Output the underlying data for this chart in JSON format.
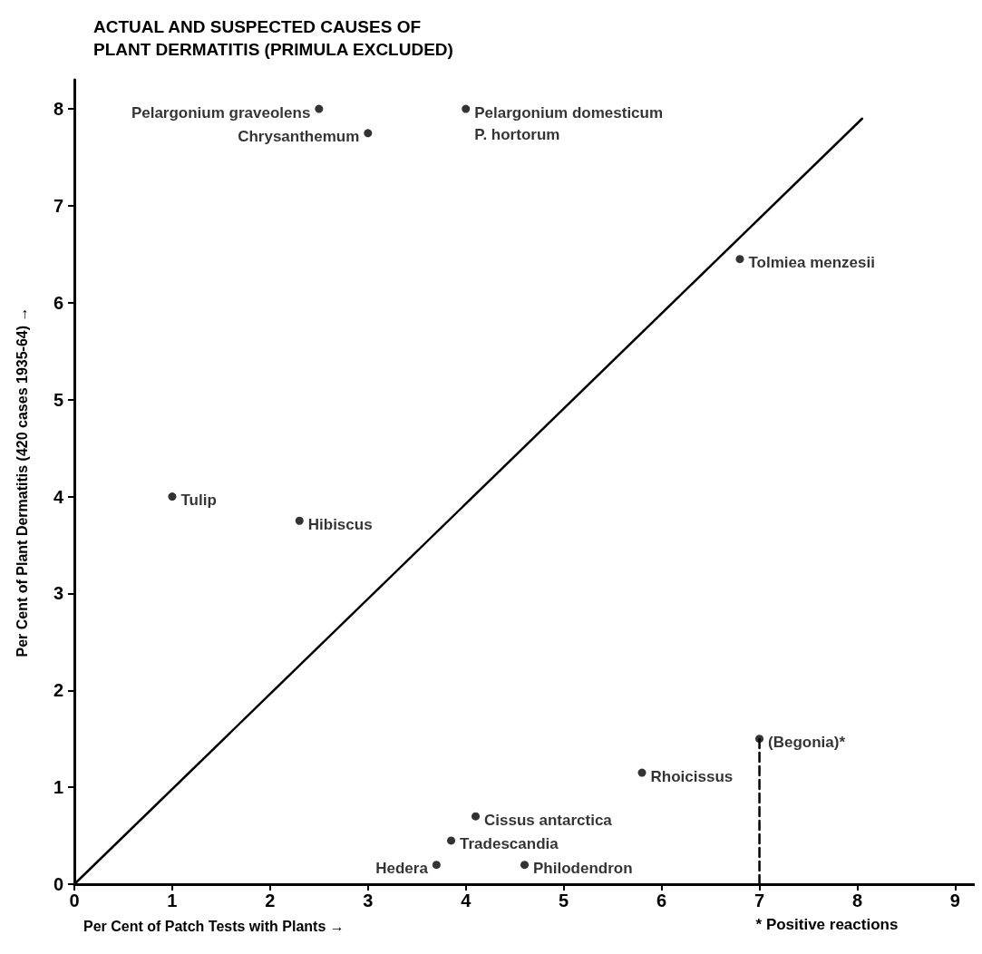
{
  "chart_data": {
    "type": "scatter",
    "title": "ACTUAL AND SUSPECTED CAUSES OF\nPLANT DERMATITIS (PRIMULA EXCLUDED)",
    "xlabel": "Per Cent of Patch Tests with Plants →",
    "ylabel": "Per Cent of Plant Dermatitis (420 cases 1935-64) →",
    "xlim": [
      0,
      9.2
    ],
    "ylim": [
      0,
      8.3
    ],
    "xticks": [
      0,
      1,
      2,
      3,
      4,
      5,
      6,
      7,
      8,
      9
    ],
    "yticks": [
      0,
      1,
      2,
      3,
      4,
      5,
      6,
      7,
      8
    ],
    "grid": false,
    "legend": false,
    "marker": "circle",
    "annotations": [
      {
        "text": "* Positive reactions",
        "x": 7,
        "y": 0
      }
    ],
    "series": [
      {
        "name": "Pelargonium graveolens",
        "color": "#000000",
        "x": [
          2.5
        ],
        "values": [
          8.0
        ]
      },
      {
        "name": "Chrysanthemum",
        "color": "#000000",
        "x": [
          3.0
        ],
        "values": [
          7.75
        ]
      },
      {
        "name": "Pelargonium domesticum\nP. hortorum",
        "color": "#000000",
        "x": [
          4.0
        ],
        "values": [
          8.0
        ]
      },
      {
        "name": "Tolmiea menzesii",
        "color": "#000000",
        "x": [
          6.8
        ],
        "values": [
          6.45
        ]
      },
      {
        "name": "Tulip",
        "color": "#000000",
        "x": [
          1.0
        ],
        "values": [
          4.0
        ]
      },
      {
        "name": "Hibiscus",
        "color": "#000000",
        "x": [
          2.3
        ],
        "values": [
          3.75
        ]
      },
      {
        "name": "(Begonia)*",
        "color": "#000000",
        "x": [
          7.0
        ],
        "values": [
          1.5
        ]
      },
      {
        "name": "Rhoicissus",
        "color": "#000000",
        "x": [
          5.8
        ],
        "values": [
          1.15
        ]
      },
      {
        "name": "Cissus antarctica",
        "color": "#000000",
        "x": [
          4.1
        ],
        "values": [
          0.7
        ]
      },
      {
        "name": "Tradescandia",
        "color": "#000000",
        "x": [
          3.85
        ],
        "values": [
          0.45
        ]
      },
      {
        "name": "Hedera",
        "color": "#000000",
        "x": [
          3.7
        ],
        "values": [
          0.2
        ]
      },
      {
        "name": "Philodendron",
        "color": "#000000",
        "x": [
          4.6
        ],
        "values": [
          0.2
        ]
      },
      {
        "type": "line",
        "color": "#000000",
        "marker": "none",
        "line_style": "solid",
        "x": [
          0,
          8.05
        ],
        "values": [
          0,
          7.9
        ]
      },
      {
        "type": "line",
        "color": "#000000",
        "marker": "none",
        "line_style": "dashed",
        "x": [
          7,
          7
        ],
        "values": [
          0,
          1.5
        ]
      }
    ]
  }
}
